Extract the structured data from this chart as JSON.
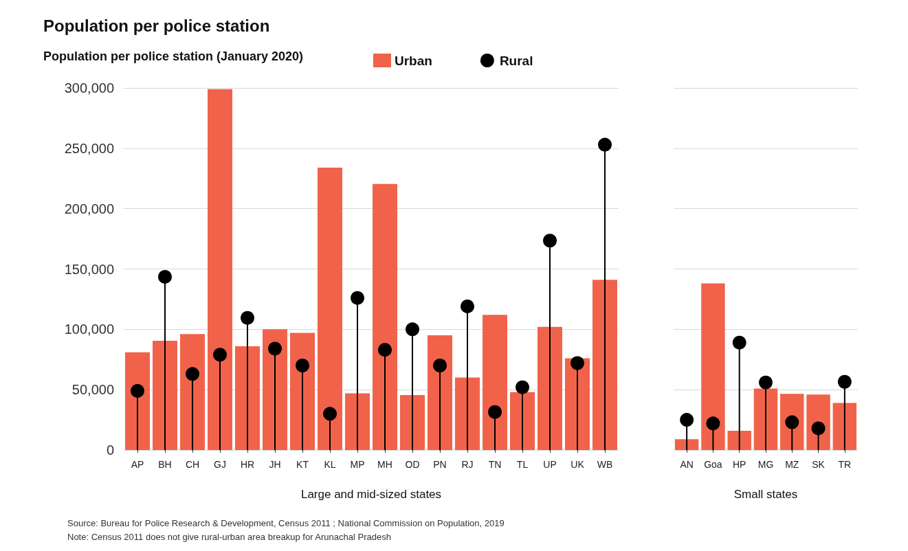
{
  "chart_data": [
    {
      "type": "bar",
      "title": "Population per police station",
      "ylabel": "Population per police station (January 2020)",
      "xlabel": "Large and mid-sized states",
      "categories": [
        "AP",
        "BH",
        "CH",
        "GJ",
        "HR",
        "JH",
        "KT",
        "KL",
        "MP",
        "MH",
        "OD",
        "PN",
        "RJ",
        "TN",
        "TL",
        "UP",
        "UK",
        "WB"
      ],
      "series": [
        {
          "name": "Urban",
          "type": "bar",
          "color": "#f0634a",
          "values": [
            81000,
            90500,
            96000,
            299000,
            86000,
            100000,
            97000,
            234000,
            47000,
            220500,
            45500,
            95000,
            60000,
            112000,
            48000,
            102000,
            76000,
            141000
          ]
        },
        {
          "name": "Rural",
          "type": "lollipop",
          "color": "#000000",
          "values": [
            49000,
            143500,
            63000,
            79000,
            109500,
            84000,
            70000,
            30000,
            126000,
            83000,
            100000,
            70000,
            119000,
            31500,
            52000,
            173500,
            72000,
            253000
          ]
        }
      ],
      "ylim": [
        0,
        300000
      ],
      "yticks": [
        {
          "value": 0,
          "label": "0"
        },
        {
          "value": 50000,
          "label": "50,000"
        },
        {
          "value": 100000,
          "label": "100,000"
        },
        {
          "value": 150000,
          "label": "150,000"
        },
        {
          "value": 200000,
          "label": "200,000"
        },
        {
          "value": 250000,
          "label": "250,000"
        },
        {
          "value": 300000,
          "label": "300,000"
        }
      ],
      "grid": "y",
      "legend": "top",
      "marker": "circle",
      "annotations": [
        "Source: Bureau for Police Research & Development, Census 2011 ; National Commission on Population, 2019",
        "Note: Census 2011 does not give rural-urban area breakup for Arunachal Pradesh"
      ]
    },
    {
      "type": "bar",
      "xlabel": "Small states",
      "categories": [
        "AN",
        "Goa",
        "HP",
        "MG",
        "MZ",
        "SK",
        "TR"
      ],
      "series": [
        {
          "type": "bar",
          "color": "#f0634a",
          "values": [
            9000,
            138000,
            16000,
            51000,
            46500,
            46000,
            39000
          ]
        },
        {
          "type": "lollipop",
          "color": "#000000",
          "values": [
            25000,
            22000,
            89000,
            56000,
            23000,
            18000,
            56500
          ]
        }
      ],
      "ylim": [
        0,
        300000
      ],
      "yticks": [
        0,
        50000,
        100000,
        150000,
        200000,
        250000,
        300000
      ],
      "grid": "y",
      "tick_labels": "x",
      "marker": "circle"
    }
  ]
}
